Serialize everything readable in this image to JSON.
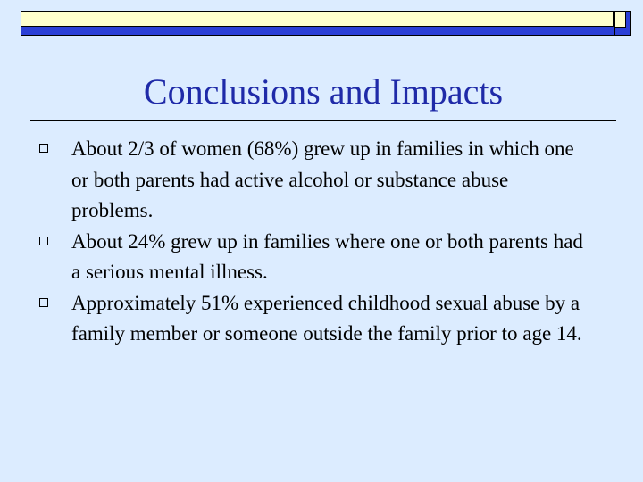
{
  "slide": {
    "title": "Conclusions and Impacts",
    "bullets": [
      {
        "text": "About 2/3 of women (68%) grew up in families in which one or both parents had active alcohol or substance abuse problems.",
        "icon": "hollow-square-bullet-icon"
      },
      {
        "text": "About 24% grew up in families where one or both parents had a serious mental illness.",
        "icon": "hollow-square-bullet-icon"
      },
      {
        "text": "Approximately 51% experienced childhood sexual abuse by a family member or someone outside the family prior to age 14.",
        "icon": "hollow-square-bullet-icon"
      }
    ]
  },
  "colors": {
    "background": "#dcecff",
    "title": "#1f2aa8",
    "accent_blue": "#2b3fd6",
    "accent_yellow": "#ffffcc"
  }
}
